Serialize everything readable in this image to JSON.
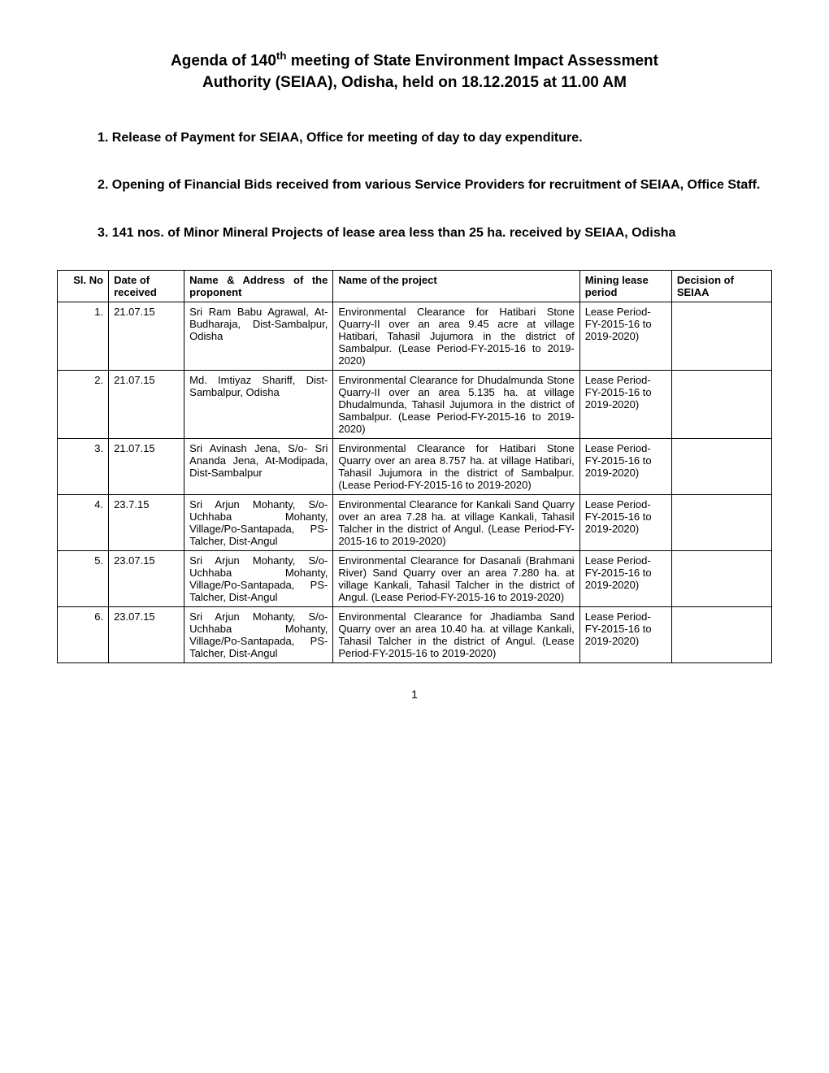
{
  "title_line1": "Agenda of 140",
  "title_sup": "th",
  "title_line1b": " meeting of State Environment Impact Assessment",
  "title_line2": "Authority (SEIAA), Odisha, held on 18.12.2015 at 11.00 AM",
  "items": [
    {
      "num": "1.",
      "text": "Release of Payment for SEIAA, Office for meeting of day to day expenditure."
    },
    {
      "num": "2.",
      "text": "Opening of Financial Bids received from various Service Providers for recruitment of SEIAA, Office Staff."
    },
    {
      "num": "3.",
      "text": "141 nos. of Minor Mineral Projects of lease area less than 25 ha. received by SEIAA, Odisha"
    }
  ],
  "table": {
    "headers": {
      "slno": "Sl. No",
      "date": "Date of received",
      "proponent": "Name & Address of the proponent",
      "project": "Name of the project",
      "lease": "Mining lease period",
      "decision": "Decision of SEIAA"
    },
    "rows": [
      {
        "sl": "1.",
        "date": "21.07.15",
        "proponent": "Sri Ram Babu Agrawal, At-Budharaja, Dist-Sambalpur, Odisha",
        "project": "Environmental Clearance for Hatibari Stone Quarry-II over an area 9.45 acre at village Hatibari, Tahasil Jujumora in the district of Sambalpur. (Lease Period-FY-2015-16 to 2019-2020)",
        "lease": "Lease Period-FY-2015-16 to 2019-2020)",
        "decision": ""
      },
      {
        "sl": "2.",
        "date": "21.07.15",
        "proponent": "Md. Imtiyaz Shariff, Dist-Sambalpur, Odisha",
        "project": "Environmental Clearance for Dhudalmunda Stone Quarry-II over an area 5.135 ha. at village Dhudalmunda, Tahasil Jujumora in the district of Sambalpur. (Lease Period-FY-2015-16 to 2019-2020)",
        "lease": "Lease Period-FY-2015-16 to 2019-2020)",
        "decision": ""
      },
      {
        "sl": "3.",
        "date": "21.07.15",
        "proponent": "Sri Avinash Jena, S/o- Sri Ananda Jena, At-Modipada, Dist-Sambalpur",
        "project": "Environmental Clearance for Hatibari Stone Quarry over an area 8.757 ha. at village Hatibari, Tahasil Jujumora in the district of Sambalpur. (Lease Period-FY-2015-16 to 2019-2020)",
        "lease": "Lease Period-FY-2015-16 to 2019-2020)",
        "decision": ""
      },
      {
        "sl": "4.",
        "date": "23.7.15",
        "proponent": "Sri Arjun Mohanty, S/o-Uchhaba Mohanty, Village/Po-Santapada, PS-Talcher, Dist-Angul",
        "project": "Environmental Clearance for Kankali Sand Quarry over an area 7.28 ha. at village Kankali, Tahasil Talcher in the district of Angul. (Lease Period-FY-2015-16 to 2019-2020)",
        "lease": "Lease Period-FY-2015-16 to 2019-2020)",
        "decision": ""
      },
      {
        "sl": "5.",
        "date": "23.07.15",
        "proponent": "Sri Arjun Mohanty, S/o-Uchhaba Mohanty, Village/Po-Santapada, PS-Talcher, Dist-Angul",
        "project": "Environmental Clearance for Dasanali (Brahmani River) Sand Quarry over an area 7.280 ha. at village Kankali, Tahasil Talcher in the district of Angul. (Lease Period-FY-2015-16 to 2019-2020)",
        "lease": "Lease Period-FY-2015-16 to 2019-2020)",
        "decision": ""
      },
      {
        "sl": "6.",
        "date": "23.07.15",
        "proponent": "Sri Arjun Mohanty, S/o-Uchhaba Mohanty, Village/Po-Santapada, PS-Talcher, Dist-Angul",
        "project": "Environmental Clearance for Jhadiamba Sand Quarry over an area 10.40 ha. at village Kankali, Tahasil Talcher in the district of Angul. (Lease Period-FY-2015-16 to 2019-2020)",
        "lease": "Lease Period-FY-2015-16 to 2019-2020)",
        "decision": ""
      }
    ]
  },
  "page_number": "1"
}
